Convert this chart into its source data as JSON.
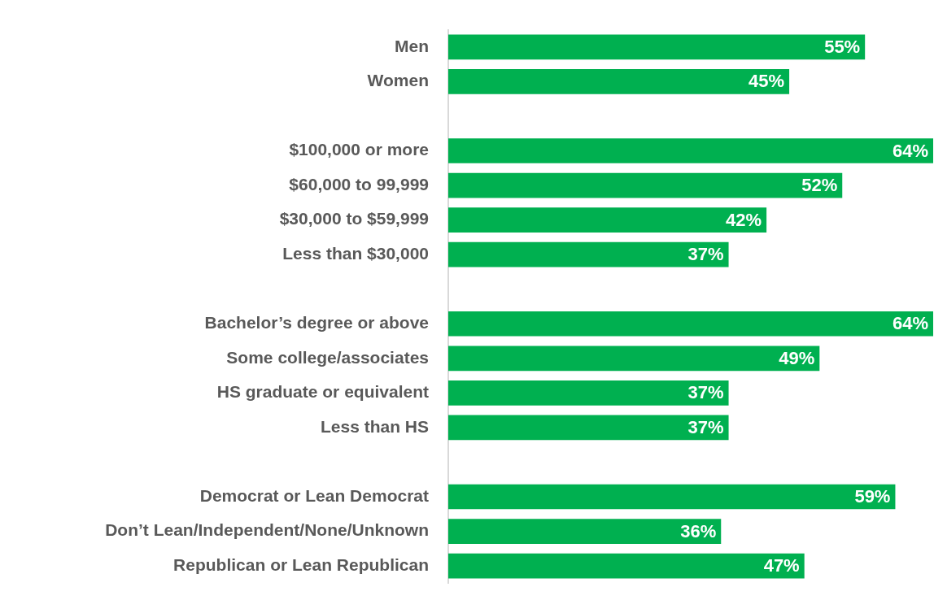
{
  "chart_data": {
    "type": "bar",
    "orientation": "horizontal",
    "categories": [
      "Men",
      "Women",
      null,
      "$100,000 or more",
      "$60,000 to 99,999",
      "$30,000 to $59,999",
      "Less than $30,000",
      null,
      "Bachelor’s degree or above",
      "Some college/associates",
      "HS graduate or equivalent",
      "Less than HS",
      null,
      "Democrat or Lean Democrat",
      "Don’t Lean/Independent/None/Unknown",
      "Republican or Lean Republican"
    ],
    "values": [
      55,
      45,
      null,
      64,
      52,
      42,
      37,
      null,
      64,
      49,
      37,
      37,
      null,
      59,
      36,
      47
    ],
    "value_labels": [
      "55%",
      "45%",
      null,
      "64%",
      "52%",
      "42%",
      "37%",
      null,
      "64%",
      "49%",
      "37%",
      "37%",
      null,
      "59%",
      "36%",
      "47%"
    ],
    "color": "#00b050",
    "xlim": [
      0,
      64
    ],
    "tick_labels": "y"
  }
}
